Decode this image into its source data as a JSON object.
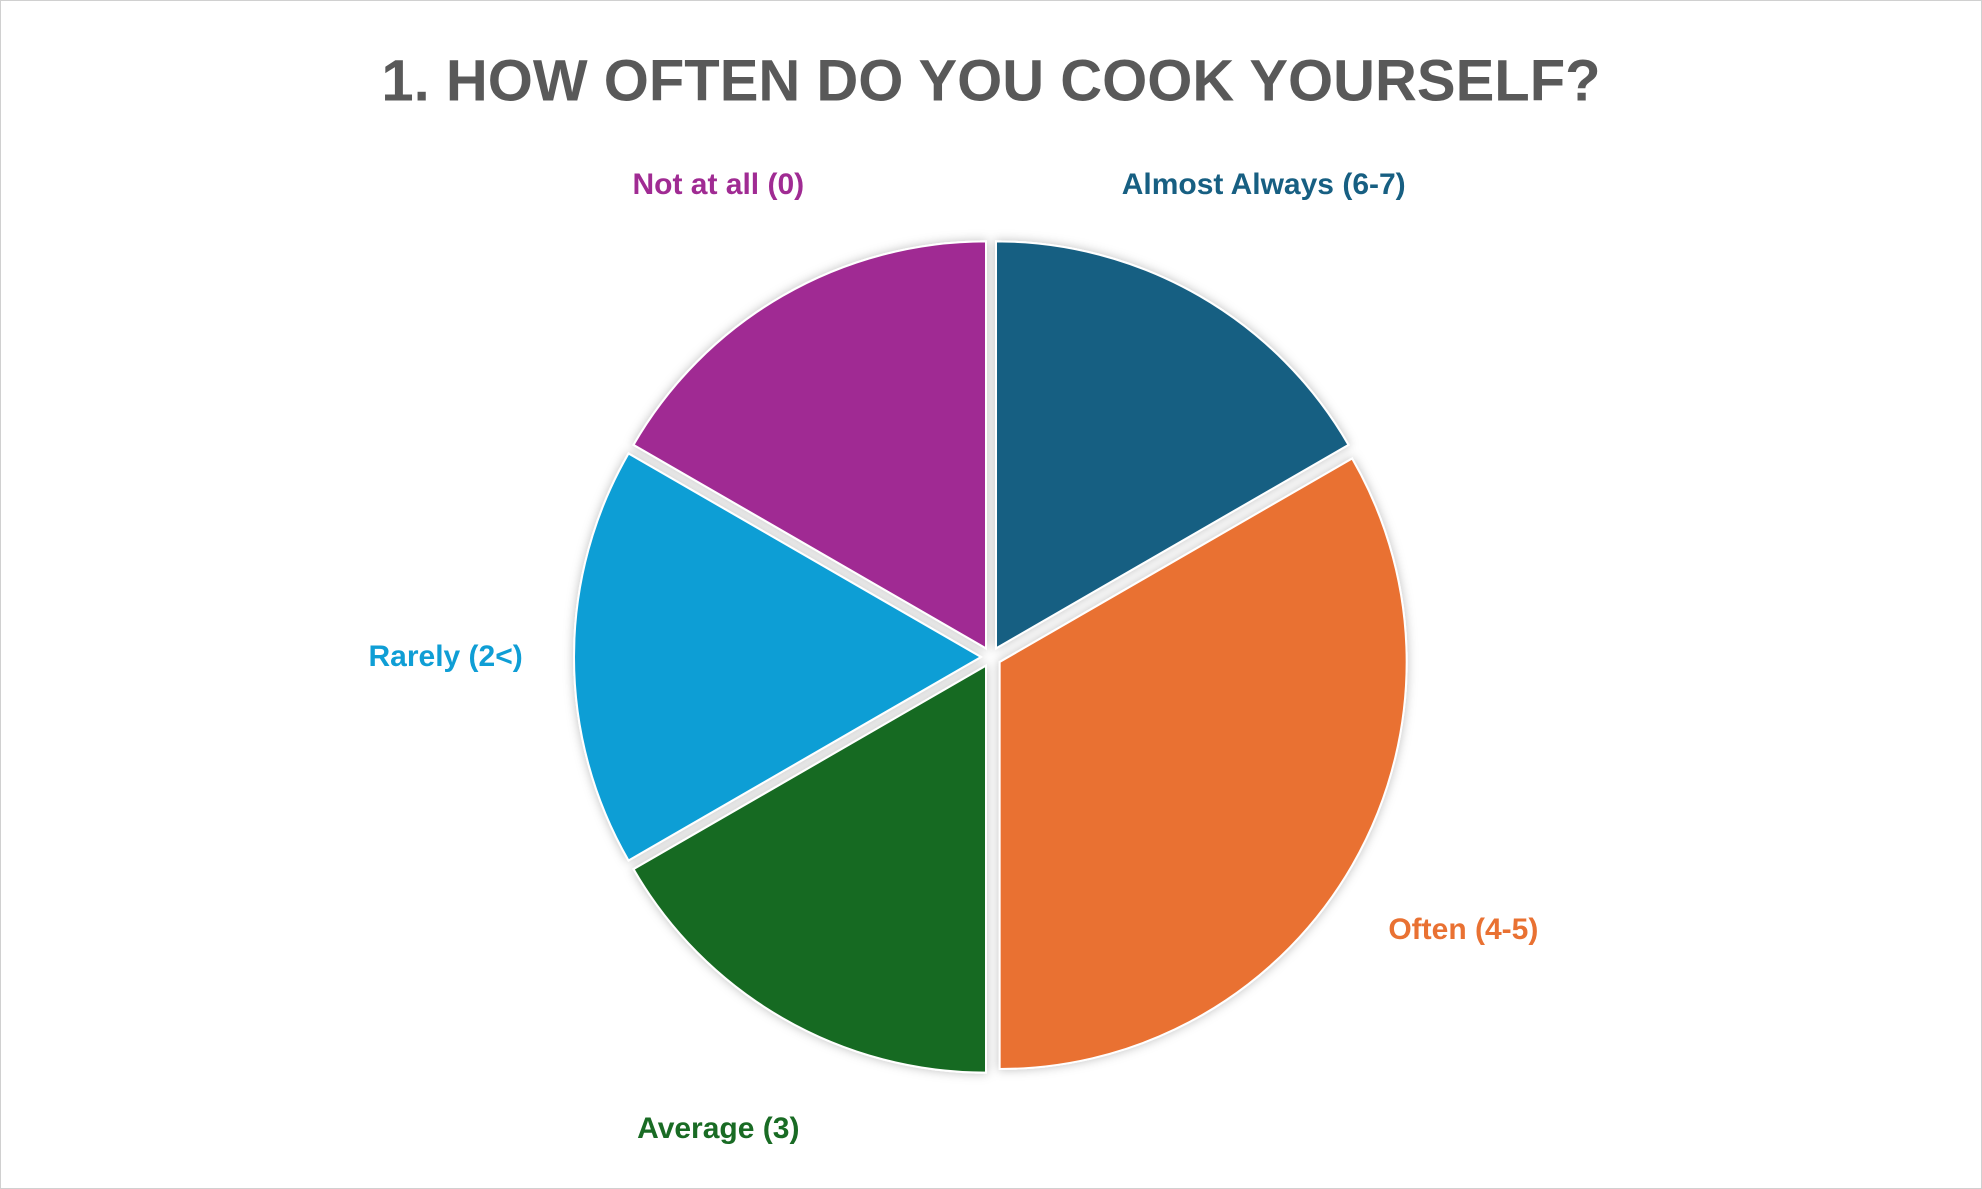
{
  "chart_data": {
    "type": "pie",
    "title": "1. HOW OFTEN DO YOU COOK YOURSELF?",
    "categories": [
      "Almost Always (6-7)",
      "Often (4-5)",
      "Average (3)",
      "Rarely (2<)",
      "Not at all (0)"
    ],
    "values": [
      1,
      2,
      1,
      1,
      1
    ],
    "colors": [
      "#175f82",
      "#e97132",
      "#196b24",
      "#0f9ed5",
      "#a02b93"
    ]
  }
}
